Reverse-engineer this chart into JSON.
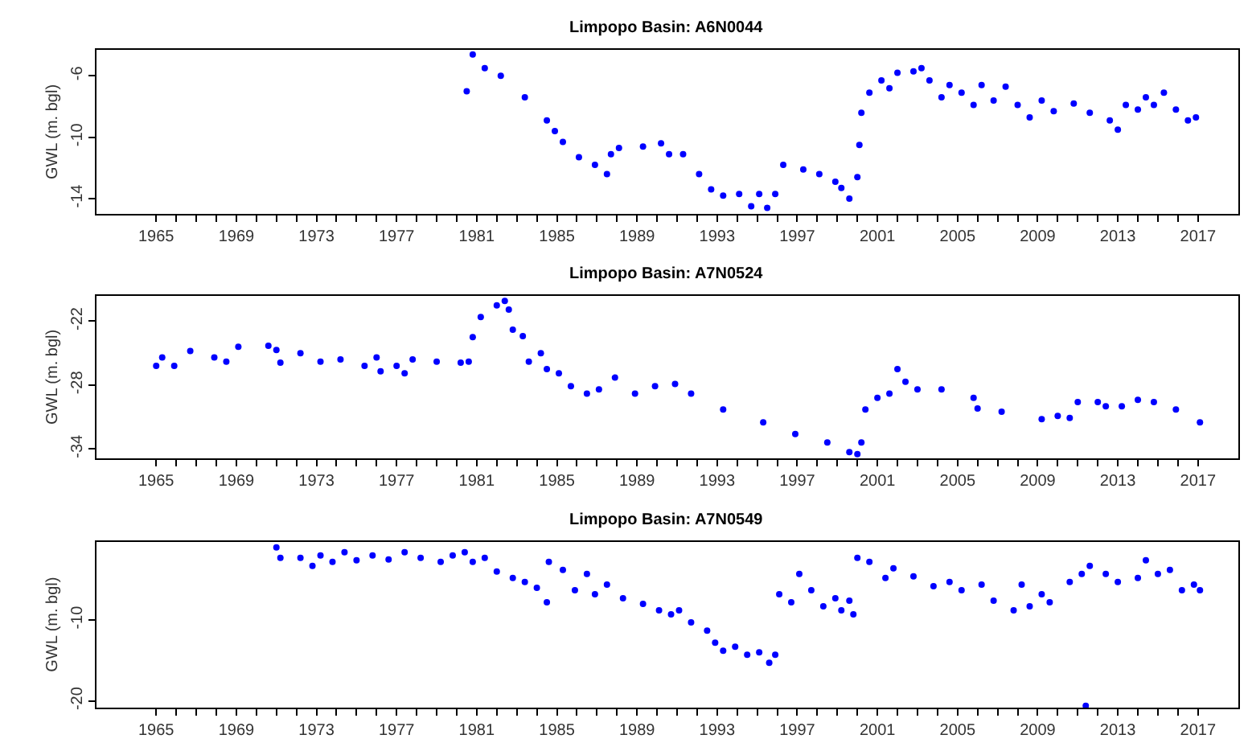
{
  "chart_data": [
    {
      "type": "scatter",
      "title": "Limpopo Basin: A6N0044",
      "ylabel": "GWL (m. bgl)",
      "marker": "circle",
      "xlim": [
        1962,
        2019
      ],
      "ylim": [
        -15.0,
        -4.3
      ],
      "yticks": [
        -6,
        -10,
        -14
      ],
      "xticks": [
        1965,
        {
          "value": 1966,
          "label": null
        },
        {
          "value": 1967,
          "label": null
        },
        {
          "value": 1968,
          "label": null
        },
        1969,
        {
          "value": 1970,
          "label": null
        },
        {
          "value": 1971,
          "label": null
        },
        {
          "value": 1972,
          "label": null
        },
        1973,
        {
          "value": 1974,
          "label": null
        },
        {
          "value": 1975,
          "label": null
        },
        {
          "value": 1976,
          "label": null
        },
        1977,
        {
          "value": 1978,
          "label": null
        },
        {
          "value": 1979,
          "label": null
        },
        {
          "value": 1980,
          "label": null
        },
        1981,
        {
          "value": 1982,
          "label": null
        },
        {
          "value": 1983,
          "label": null
        },
        {
          "value": 1984,
          "label": null
        },
        1985,
        {
          "value": 1986,
          "label": null
        },
        {
          "value": 1987,
          "label": null
        },
        {
          "value": 1988,
          "label": null
        },
        1989,
        {
          "value": 1990,
          "label": null
        },
        {
          "value": 1991,
          "label": null
        },
        {
          "value": 1992,
          "label": null
        },
        1993,
        {
          "value": 1994,
          "label": null
        },
        {
          "value": 1995,
          "label": null
        },
        {
          "value": 1996,
          "label": null
        },
        1997,
        {
          "value": 1998,
          "label": null
        },
        {
          "value": 1999,
          "label": null
        },
        {
          "value": 2000,
          "label": null
        },
        2001,
        {
          "value": 2002,
          "label": null
        },
        {
          "value": 2003,
          "label": null
        },
        {
          "value": 2004,
          "label": null
        },
        2005,
        {
          "value": 2006,
          "label": null
        },
        {
          "value": 2007,
          "label": null
        },
        {
          "value": 2008,
          "label": null
        },
        2009,
        {
          "value": 2010,
          "label": null
        },
        {
          "value": 2011,
          "label": null
        },
        {
          "value": 2012,
          "label": null
        },
        2013,
        {
          "value": 2014,
          "label": null
        },
        {
          "value": 2015,
          "label": null
        },
        {
          "value": 2016,
          "label": null
        },
        2017
      ],
      "series": [
        {
          "color": "#0000ff",
          "x": [
            1980.5,
            1980.8,
            1981.4,
            1982.2,
            1983.4,
            1984.5,
            1984.9,
            1985.3,
            1986.1,
            1986.9,
            1987.5,
            1987.7,
            1988.1,
            1989.3,
            1990.2,
            1990.6,
            1991.3,
            1992.1,
            1992.7,
            1993.3,
            1994.1,
            1994.7,
            1995.1,
            1995.5,
            1995.9,
            1996.3,
            1997.3,
            1998.1,
            1998.9,
            1999.2,
            1999.6,
            2000.0,
            2000.1,
            2000.2,
            2000.6,
            2001.2,
            2001.6,
            2002.0,
            2002.8,
            2003.2,
            2003.6,
            2004.2,
            2004.6,
            2005.2,
            2005.8,
            2006.2,
            2006.8,
            2007.4,
            2008.0,
            2008.6,
            2009.2,
            2009.8,
            2010.8,
            2011.6,
            2012.6,
            2013.0,
            2013.4,
            2014.0,
            2014.4,
            2014.8,
            2015.3,
            2015.9,
            2016.5,
            2016.9
          ],
          "values": [
            -7.0,
            -4.6,
            -5.5,
            -6.0,
            -7.4,
            -8.9,
            -9.6,
            -10.3,
            -11.3,
            -11.8,
            -12.4,
            -11.1,
            -10.7,
            -10.6,
            -10.4,
            -11.1,
            -11.1,
            -12.4,
            -13.4,
            -13.8,
            -13.7,
            -14.5,
            -13.7,
            -14.6,
            -13.7,
            -11.8,
            -12.1,
            -12.4,
            -12.9,
            -13.3,
            -14.0,
            -12.6,
            -10.5,
            -8.4,
            -7.1,
            -6.3,
            -6.8,
            -5.8,
            -5.7,
            -5.5,
            -6.3,
            -7.4,
            -6.6,
            -7.1,
            -7.9,
            -6.6,
            -7.6,
            -6.7,
            -7.9,
            -8.7,
            -7.6,
            -8.3,
            -7.8,
            -8.4,
            -8.9,
            -9.5,
            -7.9,
            -8.2,
            -7.4,
            -7.9,
            -7.1,
            -8.2,
            -8.9,
            -8.7
          ]
        }
      ]
    },
    {
      "type": "scatter",
      "title": "Limpopo Basin: A7N0524",
      "ylabel": "GWL (m. bgl)",
      "marker": "circle",
      "xlim": [
        1962,
        2019
      ],
      "ylim": [
        -34.9,
        -19.6
      ],
      "yticks": [
        -22,
        -28,
        -34
      ],
      "xticks": [
        1965,
        {
          "value": 1966,
          "label": null
        },
        {
          "value": 1967,
          "label": null
        },
        {
          "value": 1968,
          "label": null
        },
        1969,
        {
          "value": 1970,
          "label": null
        },
        {
          "value": 1971,
          "label": null
        },
        {
          "value": 1972,
          "label": null
        },
        1973,
        {
          "value": 1974,
          "label": null
        },
        {
          "value": 1975,
          "label": null
        },
        {
          "value": 1976,
          "label": null
        },
        1977,
        {
          "value": 1978,
          "label": null
        },
        {
          "value": 1979,
          "label": null
        },
        {
          "value": 1980,
          "label": null
        },
        1981,
        {
          "value": 1982,
          "label": null
        },
        {
          "value": 1983,
          "label": null
        },
        {
          "value": 1984,
          "label": null
        },
        1985,
        {
          "value": 1986,
          "label": null
        },
        {
          "value": 1987,
          "label": null
        },
        {
          "value": 1988,
          "label": null
        },
        1989,
        {
          "value": 1990,
          "label": null
        },
        {
          "value": 1991,
          "label": null
        },
        {
          "value": 1992,
          "label": null
        },
        1993,
        {
          "value": 1994,
          "label": null
        },
        {
          "value": 1995,
          "label": null
        },
        {
          "value": 1996,
          "label": null
        },
        1997,
        {
          "value": 1998,
          "label": null
        },
        {
          "value": 1999,
          "label": null
        },
        {
          "value": 2000,
          "label": null
        },
        2001,
        {
          "value": 2002,
          "label": null
        },
        {
          "value": 2003,
          "label": null
        },
        {
          "value": 2004,
          "label": null
        },
        2005,
        {
          "value": 2006,
          "label": null
        },
        {
          "value": 2007,
          "label": null
        },
        {
          "value": 2008,
          "label": null
        },
        2009,
        {
          "value": 2010,
          "label": null
        },
        {
          "value": 2011,
          "label": null
        },
        {
          "value": 2012,
          "label": null
        },
        2013,
        {
          "value": 2014,
          "label": null
        },
        {
          "value": 2015,
          "label": null
        },
        {
          "value": 2016,
          "label": null
        },
        2017
      ],
      "series": [
        {
          "color": "#0000ff",
          "x": [
            1965.0,
            1965.3,
            1965.9,
            1966.7,
            1967.9,
            1968.5,
            1969.1,
            1970.6,
            1971.0,
            1971.2,
            1972.2,
            1973.2,
            1974.2,
            1975.4,
            1976.0,
            1976.2,
            1977.0,
            1977.4,
            1977.8,
            1979.0,
            1980.2,
            1980.6,
            1980.8,
            1981.2,
            1982.0,
            1982.4,
            1982.6,
            1982.8,
            1983.3,
            1983.6,
            1984.2,
            1984.5,
            1985.1,
            1985.7,
            1986.5,
            1987.1,
            1987.9,
            1988.9,
            1989.9,
            1990.9,
            1991.7,
            1993.3,
            1995.3,
            1996.9,
            1998.5,
            1999.6,
            2000.0,
            2000.2,
            2000.4,
            2001.0,
            2001.6,
            2002.0,
            2002.4,
            2003.0,
            2004.2,
            2005.8,
            2006.0,
            2007.2,
            2009.2,
            2010.0,
            2010.6,
            2011.0,
            2012.0,
            2012.4,
            2013.2,
            2014.0,
            2014.8,
            2015.9,
            2017.1
          ],
          "values": [
            -26.2,
            -25.4,
            -26.2,
            -24.8,
            -25.4,
            -25.8,
            -24.4,
            -24.3,
            -24.7,
            -25.9,
            -25.0,
            -25.8,
            -25.6,
            -26.2,
            -25.4,
            -26.7,
            -26.2,
            -26.9,
            -25.6,
            -25.8,
            -25.9,
            -25.8,
            -23.5,
            -21.6,
            -20.5,
            -20.1,
            -20.9,
            -22.8,
            -23.4,
            -25.8,
            -25.0,
            -26.5,
            -26.9,
            -28.1,
            -28.8,
            -28.4,
            -27.3,
            -28.8,
            -28.1,
            -27.9,
            -28.8,
            -30.3,
            -31.5,
            -32.6,
            -33.4,
            -34.3,
            -34.5,
            -33.4,
            -30.3,
            -29.2,
            -28.8,
            -26.5,
            -27.7,
            -28.4,
            -28.4,
            -29.2,
            -30.2,
            -30.5,
            -31.2,
            -30.9,
            -31.1,
            -29.6,
            -29.6,
            -30.0,
            -30.0,
            -29.4,
            -29.6,
            -30.3,
            -31.5
          ]
        }
      ]
    },
    {
      "type": "scatter",
      "title": "Limpopo Basin: A7N0549",
      "ylabel": "GWL (m. bgl)",
      "marker": "circle",
      "xlim": [
        1962,
        2019
      ],
      "ylim": [
        -20.8,
        -0.3
      ],
      "yticks": [
        -10,
        -20
      ],
      "xticks": [
        1965,
        {
          "value": 1966,
          "label": null
        },
        {
          "value": 1967,
          "label": null
        },
        {
          "value": 1968,
          "label": null
        },
        1969,
        {
          "value": 1970,
          "label": null
        },
        {
          "value": 1971,
          "label": null
        },
        {
          "value": 1972,
          "label": null
        },
        1973,
        {
          "value": 1974,
          "label": null
        },
        {
          "value": 1975,
          "label": null
        },
        {
          "value": 1976,
          "label": null
        },
        1977,
        {
          "value": 1978,
          "label": null
        },
        {
          "value": 1979,
          "label": null
        },
        {
          "value": 1980,
          "label": null
        },
        1981,
        {
          "value": 1982,
          "label": null
        },
        {
          "value": 1983,
          "label": null
        },
        {
          "value": 1984,
          "label": null
        },
        1985,
        {
          "value": 1986,
          "label": null
        },
        {
          "value": 1987,
          "label": null
        },
        {
          "value": 1988,
          "label": null
        },
        1989,
        {
          "value": 1990,
          "label": null
        },
        {
          "value": 1991,
          "label": null
        },
        {
          "value": 1992,
          "label": null
        },
        1993,
        {
          "value": 1994,
          "label": null
        },
        {
          "value": 1995,
          "label": null
        },
        {
          "value": 1996,
          "label": null
        },
        1997,
        {
          "value": 1998,
          "label": null
        },
        {
          "value": 1999,
          "label": null
        },
        {
          "value": 2000,
          "label": null
        },
        2001,
        {
          "value": 2002,
          "label": null
        },
        {
          "value": 2003,
          "label": null
        },
        {
          "value": 2004,
          "label": null
        },
        2005,
        {
          "value": 2006,
          "label": null
        },
        {
          "value": 2007,
          "label": null
        },
        {
          "value": 2008,
          "label": null
        },
        2009,
        {
          "value": 2010,
          "label": null
        },
        {
          "value": 2011,
          "label": null
        },
        {
          "value": 2012,
          "label": null
        },
        2013,
        {
          "value": 2014,
          "label": null
        },
        {
          "value": 2015,
          "label": null
        },
        {
          "value": 2016,
          "label": null
        },
        2017
      ],
      "series": [
        {
          "color": "#0000ff",
          "x": [
            1971.0,
            1971.2,
            1972.2,
            1972.8,
            1973.2,
            1973.8,
            1974.4,
            1975.0,
            1975.8,
            1976.6,
            1977.4,
            1978.2,
            1979.2,
            1979.8,
            1980.4,
            1980.8,
            1981.4,
            1982.0,
            1982.8,
            1983.4,
            1984.0,
            1984.5,
            1984.6,
            1985.3,
            1985.9,
            1986.5,
            1986.9,
            1987.5,
            1988.3,
            1989.3,
            1990.1,
            1990.7,
            1991.1,
            1991.7,
            1992.5,
            1992.9,
            1993.3,
            1993.9,
            1994.5,
            1995.1,
            1995.6,
            1995.9,
            1996.1,
            1996.7,
            1997.1,
            1997.7,
            1998.3,
            1998.9,
            1999.2,
            1999.6,
            1999.8,
            2000.0,
            2000.6,
            2001.4,
            2001.8,
            2002.8,
            2003.8,
            2004.6,
            2005.2,
            2006.2,
            2006.8,
            2007.8,
            2008.2,
            2008.6,
            2009.2,
            2009.6,
            2010.6,
            2011.2,
            2011.4,
            2011.6,
            2012.4,
            2013.0,
            2014.0,
            2014.4,
            2015.0,
            2015.6,
            2016.2,
            2016.8,
            2017.1
          ],
          "values": [
            -1.0,
            -2.3,
            -2.3,
            -3.3,
            -2.0,
            -2.8,
            -1.6,
            -2.6,
            -2.0,
            -2.5,
            -1.6,
            -2.3,
            -2.8,
            -2.0,
            -1.6,
            -2.8,
            -2.3,
            -4.0,
            -4.8,
            -5.3,
            -6.0,
            -7.8,
            -2.8,
            -3.8,
            -6.3,
            -4.3,
            -6.8,
            -5.6,
            -7.3,
            -8.0,
            -8.8,
            -9.3,
            -8.8,
            -10.3,
            -11.3,
            -12.8,
            -13.8,
            -13.3,
            -14.3,
            -14.0,
            -15.3,
            -14.3,
            -6.8,
            -7.8,
            -4.3,
            -6.3,
            -8.3,
            -7.3,
            -8.8,
            -7.6,
            -9.3,
            -2.3,
            -2.8,
            -4.8,
            -3.6,
            -4.6,
            -5.8,
            -5.3,
            -6.3,
            -5.6,
            -7.6,
            -8.8,
            -5.6,
            -8.3,
            -6.8,
            -7.8,
            -5.3,
            -4.3,
            -20.6,
            -3.3,
            -4.3,
            -5.3,
            -4.8,
            -2.6,
            -4.3,
            -3.8,
            -6.3,
            -5.6,
            -6.3
          ]
        }
      ]
    }
  ]
}
